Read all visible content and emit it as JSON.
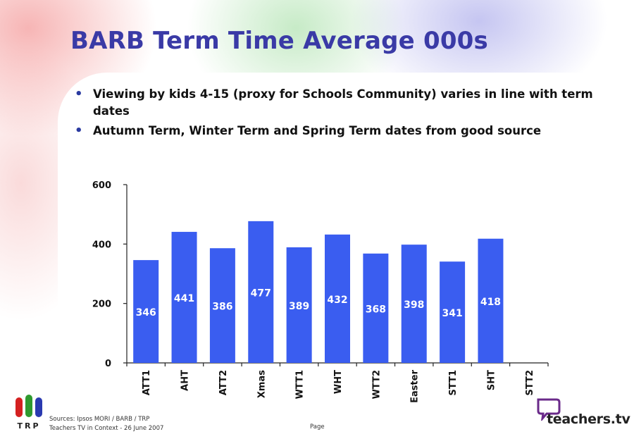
{
  "slide": {
    "title": "BARB Term Time Average 000s",
    "bullets": [
      "Viewing by kids 4-15 (proxy for Schools Community) varies in line with term dates",
      "Autumn Term, Winter Term and Spring Term dates from good source"
    ]
  },
  "footer": {
    "sources": "Sources: Ipsos MORI / BARB / TRP",
    "context": "Teachers TV in Context - 26 June 2007",
    "page": "Page",
    "left_logo_text": "TRP",
    "right_logo_text": "teachers.tv"
  },
  "colors": {
    "bar": "#3a5df0",
    "title": "#3a3aa6",
    "logo_red": "#d42020",
    "logo_green": "#2f9a2f",
    "logo_blue": "#2a3ab0",
    "logo_purple": "#6a2a8a"
  },
  "chart_data": {
    "type": "bar",
    "title": "",
    "xlabel": "",
    "ylabel": "",
    "categories": [
      "ATT1",
      "AHT",
      "ATT2",
      "Xmas",
      "WTT1",
      "WHT",
      "WTT2",
      "Easter",
      "STT1",
      "SHT",
      "STT2"
    ],
    "values": [
      346,
      441,
      386,
      477,
      389,
      432,
      368,
      398,
      341,
      418,
      null
    ],
    "data_labels": [
      "346",
      "441",
      "386",
      "477",
      "389",
      "432",
      "368",
      "398",
      "341",
      "418",
      ""
    ],
    "ylim": [
      0,
      600
    ],
    "yticks": [
      0,
      200,
      400,
      600
    ],
    "grid": false,
    "legend": "none"
  }
}
